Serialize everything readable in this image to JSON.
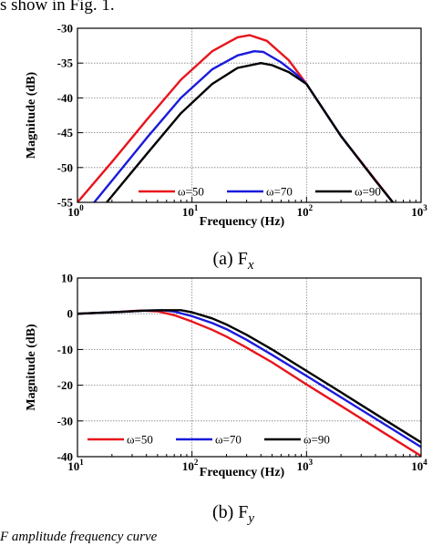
{
  "page_text": {
    "top_fragment": "s show in Fig. 1.",
    "bottom_fragment": "F  amplitude frequency curve"
  },
  "colors": {
    "series": [
      "#e8141c",
      "#1a1adc",
      "#000000"
    ],
    "grid": "#7f7f7f"
  },
  "chart_data": [
    {
      "type": "line",
      "caption": "(a) F",
      "caption_sub": "x",
      "xlabel": "Frequency (Hz)",
      "ylabel": "Magnitude (dB)",
      "x_scale": "log",
      "xlim": [
        1,
        1000
      ],
      "ylim": [
        -55,
        -30
      ],
      "x_ticks": [
        {
          "value": 1,
          "base": "10",
          "exp": "0"
        },
        {
          "value": 10,
          "base": "10",
          "exp": "1"
        },
        {
          "value": 100,
          "base": "10",
          "exp": "2"
        },
        {
          "value": 1000,
          "base": "10",
          "exp": "3"
        }
      ],
      "y_ticks": [
        -30,
        -35,
        -40,
        -45,
        -50,
        -55
      ],
      "grid": true,
      "legend_position": "bottom-center",
      "series": [
        {
          "name": "ω=50",
          "x": [
            1,
            2,
            4,
            8,
            15,
            25,
            32,
            45,
            70,
            100,
            200,
            400,
            600
          ],
          "y": [
            -55,
            -49.2,
            -43.2,
            -37.4,
            -33.3,
            -31.3,
            -31.0,
            -31.8,
            -34.6,
            -38.0,
            -45.5,
            -51.8,
            -55.5
          ]
        },
        {
          "name": "ω=70",
          "x": [
            1.4,
            2,
            4,
            8,
            15,
            25,
            35,
            42,
            60,
            80,
            100,
            200,
            400,
            600
          ],
          "y": [
            -55,
            -51.9,
            -45.8,
            -40.0,
            -35.9,
            -33.9,
            -33.3,
            -33.4,
            -34.9,
            -36.5,
            -38.0,
            -45.5,
            -51.9,
            -55.5
          ]
        },
        {
          "name": "ω=90",
          "x": [
            1.8,
            2,
            4,
            8,
            15,
            25,
            40,
            50,
            70,
            100,
            200,
            400,
            600
          ],
          "y": [
            -55,
            -54.1,
            -48.1,
            -42.2,
            -38.0,
            -35.7,
            -35.0,
            -35.3,
            -36.3,
            -38.0,
            -45.5,
            -51.9,
            -55.5
          ]
        }
      ]
    },
    {
      "type": "line",
      "caption": "(b) F",
      "caption_sub": "y",
      "xlabel": "Frequency (Hz)",
      "ylabel": "Magnitude (dB)",
      "x_scale": "log",
      "xlim": [
        10,
        10000
      ],
      "ylim": [
        -40,
        10
      ],
      "x_ticks": [
        {
          "value": 10,
          "base": "10",
          "exp": "1"
        },
        {
          "value": 100,
          "base": "10",
          "exp": "2"
        },
        {
          "value": 1000,
          "base": "10",
          "exp": "3"
        },
        {
          "value": 10000,
          "base": "10",
          "exp": "4"
        }
      ],
      "y_ticks": [
        10,
        0,
        -10,
        -20,
        -30,
        -40
      ],
      "grid": true,
      "legend_position": "bottom-left",
      "series": [
        {
          "name": "ω=50",
          "x": [
            10,
            20,
            35,
            50,
            70,
            100,
            150,
            200,
            300,
            500,
            1000,
            2000,
            5000,
            10000
          ],
          "y": [
            0,
            0.4,
            0.9,
            0.7,
            -0.4,
            -2.2,
            -4.5,
            -6.4,
            -9.5,
            -13.6,
            -19.8,
            -25.8,
            -33.8,
            -39.8
          ]
        },
        {
          "name": "ω=70",
          "x": [
            10,
            20,
            40,
            55,
            70,
            100,
            150,
            200,
            300,
            500,
            1000,
            2000,
            5000,
            10000
          ],
          "y": [
            0,
            0.4,
            0.9,
            1.0,
            0.6,
            -0.7,
            -2.6,
            -4.3,
            -7.3,
            -11.5,
            -17.4,
            -23.4,
            -31.3,
            -37.3
          ]
        },
        {
          "name": "ω=90",
          "x": [
            10,
            20,
            40,
            60,
            80,
            100,
            150,
            200,
            300,
            500,
            1000,
            2000,
            5000,
            10000
          ],
          "y": [
            0,
            0.4,
            0.9,
            1.0,
            1.0,
            0.4,
            -1.3,
            -3.0,
            -5.9,
            -10.0,
            -16.0,
            -22.0,
            -30.0,
            -36.0
          ]
        }
      ]
    }
  ]
}
